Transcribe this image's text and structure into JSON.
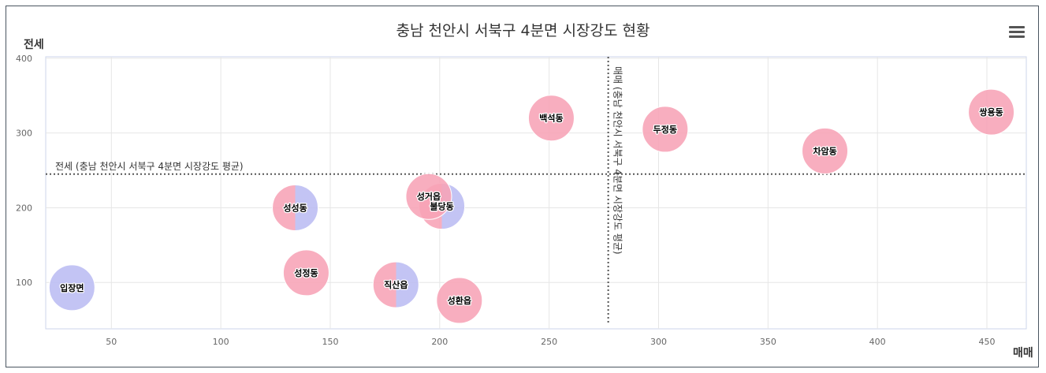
{
  "chart_data": {
    "type": "scatter",
    "title": "충남 천안시 서북구 4분면 시장강도 현황",
    "xlabel": "매매",
    "ylabel": "전세",
    "xlim": [
      20,
      468
    ],
    "ylim": [
      38,
      402
    ],
    "x_ticks": [
      50,
      100,
      150,
      200,
      250,
      300,
      350,
      400,
      450
    ],
    "y_ticks": [
      100,
      200,
      300,
      400
    ],
    "averages": {
      "x": 277,
      "y": 245,
      "x_label": "매매 (충남 천안시 서북구 4분면 시장강도 평균)",
      "y_label": "전세 (충남 천안시 서북구 4분면 시장강도 평균)"
    },
    "colors": {
      "pink": "#f7a3b6",
      "purple": "#bbbcf2"
    },
    "points": [
      {
        "name": "입장면",
        "x": 32,
        "y": 93,
        "style": "purple"
      },
      {
        "name": "성성동",
        "x": 134,
        "y": 200,
        "style": "split"
      },
      {
        "name": "성정동",
        "x": 139,
        "y": 113,
        "style": "pink"
      },
      {
        "name": "직산읍",
        "x": 180,
        "y": 97,
        "style": "split"
      },
      {
        "name": "불당동",
        "x": 201,
        "y": 202,
        "style": "split"
      },
      {
        "name": "성거읍",
        "x": 195,
        "y": 215,
        "style": "pink"
      },
      {
        "name": "성환읍",
        "x": 209,
        "y": 76,
        "style": "pink"
      },
      {
        "name": "백석동",
        "x": 251,
        "y": 320,
        "style": "pink"
      },
      {
        "name": "두정동",
        "x": 303,
        "y": 305,
        "style": "pink"
      },
      {
        "name": "차암동",
        "x": 376,
        "y": 276,
        "style": "pink"
      },
      {
        "name": "쌍용동",
        "x": 452,
        "y": 328,
        "style": "pink"
      }
    ]
  }
}
